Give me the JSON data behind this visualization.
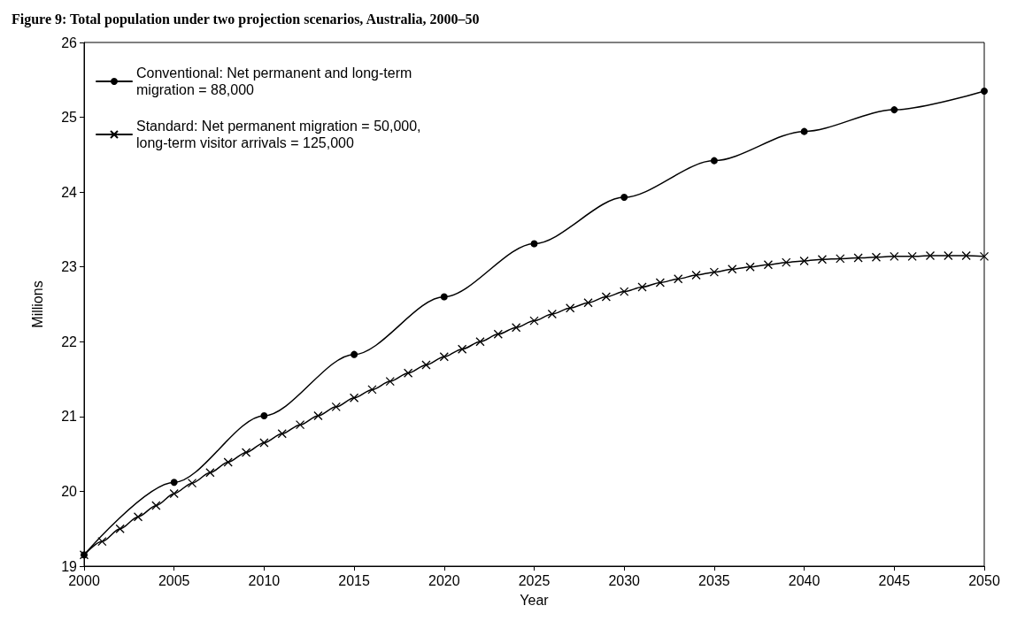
{
  "chart_data": {
    "type": "line",
    "title": "Figure 9: Total population under two projection scenarios, Australia, 2000–50",
    "xlabel": "Year",
    "ylabel": "Millions",
    "xlim": [
      2000,
      2050
    ],
    "xticks": [
      2000,
      2005,
      2010,
      2015,
      2020,
      2025,
      2030,
      2035,
      2040,
      2045,
      2050
    ],
    "ylim": [
      19,
      26
    ],
    "yticks": [
      19,
      20,
      21,
      22,
      23,
      24,
      25,
      26
    ],
    "grid": false,
    "legend": "top left",
    "series": [
      {
        "name": "Conventional: Net permanent and long-term migration = 88,000",
        "color": "#000000",
        "marker": "circle",
        "x": [
          2000,
          2005,
          2010,
          2015,
          2020,
          2025,
          2030,
          2035,
          2040,
          2045,
          2050
        ],
        "values": [
          19.15,
          20.12,
          21.01,
          21.83,
          22.6,
          23.31,
          23.93,
          24.42,
          24.81,
          25.1,
          25.35
        ]
      },
      {
        "name": "Standard: Net permanent migration = 50,000, long-term visitor arrivals = 125,000",
        "color": "#000000",
        "marker": "cross",
        "x": [
          2000,
          2001,
          2002,
          2003,
          2004,
          2005,
          2006,
          2007,
          2008,
          2009,
          2010,
          2011,
          2012,
          2013,
          2014,
          2015,
          2016,
          2017,
          2018,
          2019,
          2020,
          2021,
          2022,
          2023,
          2024,
          2025,
          2026,
          2027,
          2028,
          2029,
          2030,
          2031,
          2032,
          2033,
          2034,
          2035,
          2036,
          2037,
          2038,
          2039,
          2040,
          2041,
          2042,
          2043,
          2044,
          2045,
          2046,
          2047,
          2048,
          2049,
          2050
        ],
        "values": [
          19.15,
          19.33,
          19.5,
          19.66,
          19.81,
          19.97,
          20.11,
          20.25,
          20.39,
          20.52,
          20.65,
          20.77,
          20.89,
          21.01,
          21.13,
          21.25,
          21.36,
          21.47,
          21.58,
          21.69,
          21.8,
          21.9,
          22.0,
          22.1,
          22.19,
          22.28,
          22.37,
          22.45,
          22.52,
          22.6,
          22.67,
          22.73,
          22.79,
          22.84,
          22.89,
          22.93,
          22.97,
          23.0,
          23.03,
          23.06,
          23.08,
          23.1,
          23.11,
          23.12,
          23.13,
          23.14,
          23.14,
          23.15,
          23.15,
          23.15,
          23.14
        ]
      }
    ]
  }
}
